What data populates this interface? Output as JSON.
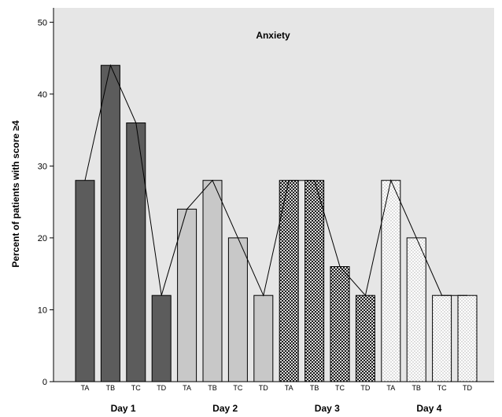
{
  "chart_data": {
    "type": "bar",
    "title": "Anxiety",
    "xlabel": "",
    "ylabel": "Percent of patients with score ≥4",
    "ylim": [
      0,
      52
    ],
    "yticks": [
      0,
      10,
      20,
      30,
      40,
      50
    ],
    "grid": false,
    "groups": [
      {
        "label": "Day 1",
        "fill": "#5c5c5c",
        "pattern": "solid"
      },
      {
        "label": "Day 2",
        "fill": "#c8c8c8",
        "pattern": "solid"
      },
      {
        "label": "Day 3",
        "fill": "#3a3a3a",
        "pattern": "checker"
      },
      {
        "label": "Day 4",
        "fill": "#ffffff",
        "pattern": "dots"
      }
    ],
    "categories": [
      "TA",
      "TB",
      "TC",
      "TD",
      "TA",
      "TB",
      "TC",
      "TD",
      "TA",
      "TB",
      "TC",
      "TD",
      "TA",
      "TB",
      "TC",
      "TD"
    ],
    "values": [
      28,
      44,
      36,
      12,
      24,
      28,
      20,
      12,
      28,
      28,
      16,
      12,
      28,
      20,
      12,
      12
    ],
    "line_overlay": true,
    "colors": {
      "background": "#e6e6e6",
      "bar_stroke": "#000000",
      "line": "#000000"
    }
  }
}
